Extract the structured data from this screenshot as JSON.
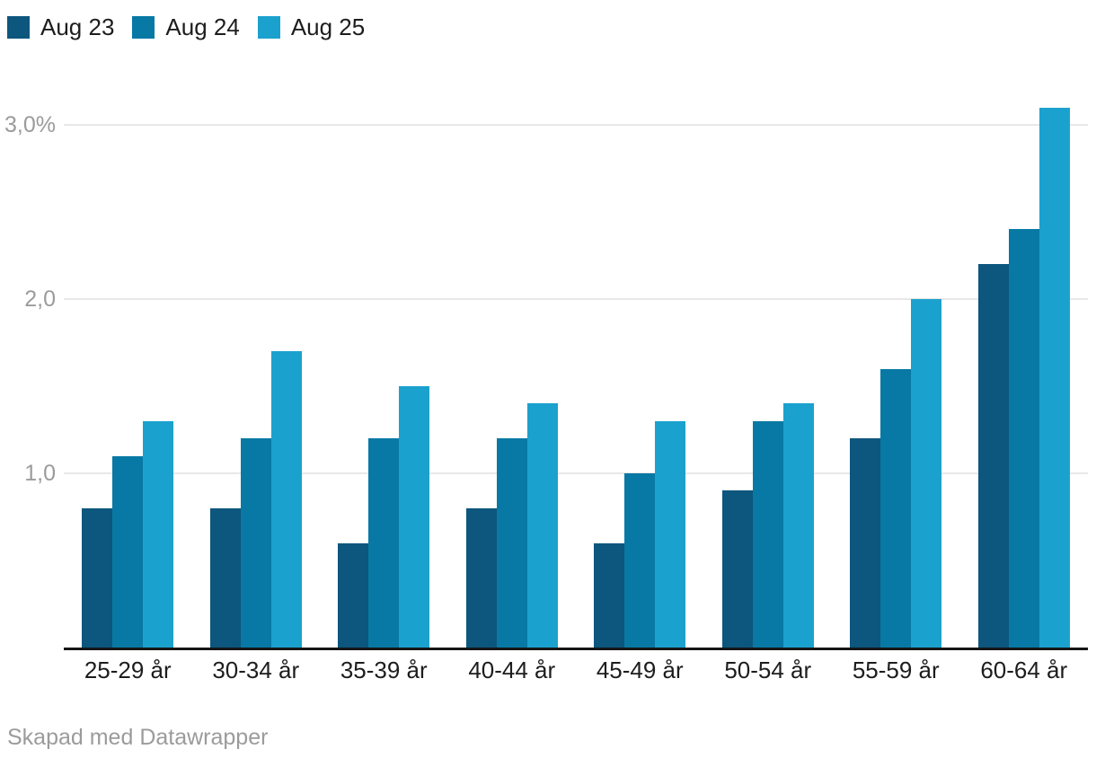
{
  "legend": {
    "items": [
      {
        "label": "Aug 23",
        "color": "#0d567d"
      },
      {
        "label": "Aug 24",
        "color": "#0779a4"
      },
      {
        "label": "Aug 25",
        "color": "#1ba1ce"
      }
    ]
  },
  "chart_data": {
    "type": "bar",
    "categories": [
      "25-29 år",
      "30-34 år",
      "35-39 år",
      "40-44 år",
      "45-49 år",
      "50-54 år",
      "55-59 år",
      "60-64 år"
    ],
    "series": [
      {
        "name": "Aug 23",
        "color": "#0d567d",
        "values": [
          0.8,
          0.8,
          0.6,
          0.8,
          0.6,
          0.9,
          1.2,
          2.2
        ]
      },
      {
        "name": "Aug 24",
        "color": "#0779a4",
        "values": [
          1.1,
          1.2,
          1.2,
          1.2,
          1.0,
          1.3,
          1.6,
          2.4
        ]
      },
      {
        "name": "Aug 25",
        "color": "#1ba1ce",
        "values": [
          1.3,
          1.7,
          1.5,
          1.4,
          1.3,
          1.4,
          2.0,
          3.1
        ]
      }
    ],
    "title": "",
    "xlabel": "",
    "ylabel": "",
    "y_axis": {
      "ticks": [
        {
          "value": 1.0,
          "label": "1,0"
        },
        {
          "value": 2.0,
          "label": "2,0"
        },
        {
          "value": 3.0,
          "label": "3,0%"
        }
      ],
      "min": 0,
      "max": 3.1,
      "unit": "%",
      "decimal_separator": ","
    },
    "grid": true,
    "legend_position": "top-left",
    "baseline_color": "#161616",
    "gridline_color": "#e8e8e8"
  },
  "footer": {
    "credit": "Skapad med Datawrapper"
  }
}
